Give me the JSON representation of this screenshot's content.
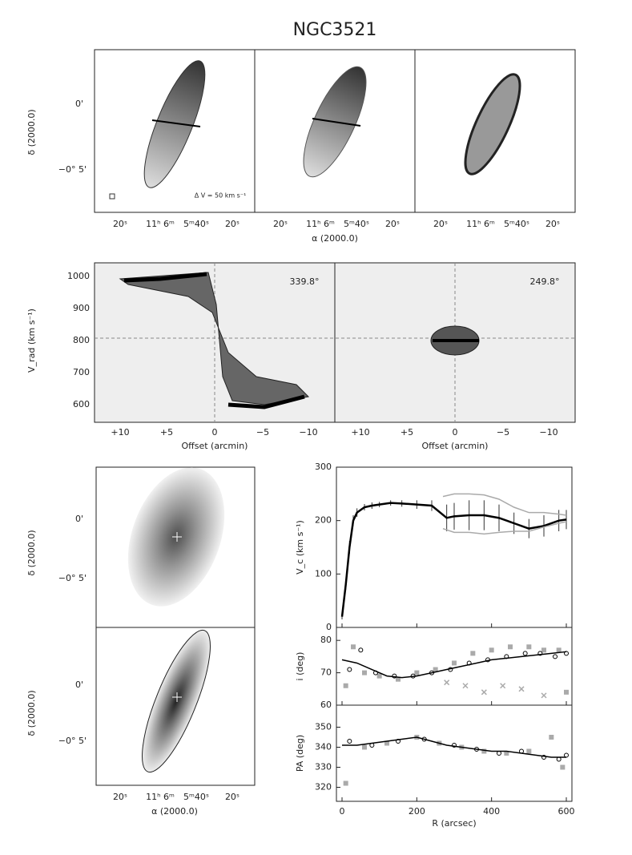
{
  "title": "NGC3521",
  "moment_maps": {
    "ylabel": "δ (2000.0)",
    "yticks": [
      "0'",
      "−0° 5'"
    ],
    "xticks": [
      "20ˢ",
      "11ʰ 6ᵐ",
      "5ᵐ40ˢ",
      "20ˢ"
    ],
    "xlabel": "α (2000.0)",
    "annotation": "Δ V = 50 km s⁻¹"
  },
  "pv": {
    "ylabel": "V_rad (km s⁻¹)",
    "yticks": [
      "1000",
      "900",
      "800",
      "700",
      "600"
    ],
    "xticks": [
      "+10",
      "+5",
      "0",
      "−5",
      "−10"
    ],
    "xlabel": "Offset (arcmin)",
    "angles": [
      "339.8°",
      "249.8°"
    ]
  },
  "optical": {
    "ylabel": "δ (2000.0)",
    "yticks": [
      "0'",
      "−0° 5'"
    ],
    "xticks": [
      "20ˢ",
      "11ʰ 6ᵐ",
      "5ᵐ40ˢ",
      "20ˢ"
    ],
    "xlabel": "α (2000.0)"
  },
  "chart_data": [
    {
      "type": "line",
      "ylabel": "V_c (km s⁻¹)",
      "xlim": [
        -15,
        615
      ],
      "xticks": [
        0,
        200,
        400,
        600
      ],
      "ylim": [
        0,
        300
      ],
      "yticks": [
        0,
        100,
        200,
        300
      ],
      "series": [
        {
          "color": "#000000",
          "marker": "line",
          "x": [
            0,
            10,
            20,
            30,
            40,
            60,
            80,
            100,
            130,
            160,
            200,
            240,
            280,
            300,
            340,
            380,
            420,
            460,
            500,
            540,
            580,
            600
          ],
          "values": [
            20,
            80,
            150,
            200,
            215,
            225,
            228,
            230,
            233,
            232,
            230,
            228,
            205,
            208,
            210,
            210,
            205,
            195,
            185,
            190,
            200,
            202
          ],
          "errors": [
            5,
            10,
            12,
            10,
            8,
            6,
            6,
            5,
            5,
            6,
            8,
            10,
            25,
            25,
            28,
            28,
            25,
            20,
            18,
            20,
            20,
            18
          ]
        },
        {
          "color": "#aaaaaa",
          "marker": "line",
          "x": [
            270,
            300,
            340,
            380,
            420,
            460,
            500,
            540,
            580,
            600
          ],
          "values": [
            245,
            250,
            250,
            248,
            240,
            225,
            215,
            215,
            212,
            210
          ]
        },
        {
          "color": "#aaaaaa",
          "marker": "line",
          "x": [
            270,
            300,
            340,
            380,
            420,
            460,
            500,
            540,
            580,
            600
          ],
          "values": [
            185,
            178,
            178,
            175,
            178,
            180,
            180,
            188,
            195,
            198
          ]
        }
      ]
    },
    {
      "type": "line",
      "ylabel": "i (deg)",
      "xlim": [
        -15,
        615
      ],
      "xticks": [
        0,
        200,
        400,
        600
      ],
      "ylim": [
        60,
        84
      ],
      "yticks": [
        60,
        70,
        80
      ],
      "series": [
        {
          "color": "#aaaaaa",
          "marker": "square",
          "x": [
            10,
            30,
            60,
            100,
            150,
            200,
            250,
            300,
            350,
            400,
            450,
            500,
            540,
            580,
            600
          ],
          "values": [
            66,
            78,
            70,
            69,
            68,
            70,
            71,
            73,
            76,
            77,
            78,
            78,
            77,
            77,
            64
          ]
        },
        {
          "color": "#aaaaaa",
          "marker": "cross",
          "x": [
            280,
            330,
            380,
            430,
            480,
            540
          ],
          "values": [
            67,
            66,
            64,
            66,
            65,
            63
          ]
        },
        {
          "color": "#000000",
          "marker": "circle",
          "x": [
            20,
            50,
            90,
            140,
            190,
            240,
            290,
            340,
            390,
            440,
            490,
            530,
            570,
            600
          ],
          "values": [
            71,
            77,
            70,
            69,
            69,
            70,
            71,
            73,
            74,
            75,
            76,
            76,
            75,
            76
          ]
        },
        {
          "color": "#000000",
          "marker": "line",
          "x": [
            0,
            40,
            80,
            120,
            160,
            200,
            240,
            280,
            320,
            360,
            400,
            440,
            480,
            520,
            560,
            600
          ],
          "values": [
            74,
            73,
            71,
            69,
            68.5,
            69,
            70,
            71,
            72,
            73,
            74,
            74.5,
            75,
            75.5,
            76,
            76.5
          ]
        }
      ]
    },
    {
      "type": "line",
      "ylabel": "PA (deg)",
      "xlabel": "R (arcsec)",
      "show_xtick_labels": true,
      "xlim": [
        -15,
        615
      ],
      "xticks": [
        0,
        200,
        400,
        600
      ],
      "ylim": [
        313,
        361
      ],
      "yticks": [
        320,
        330,
        340,
        350
      ],
      "series": [
        {
          "color": "#aaaaaa",
          "marker": "square",
          "x": [
            10,
            60,
            120,
            200,
            260,
            320,
            380,
            440,
            500,
            560,
            590
          ],
          "values": [
            322,
            340,
            342,
            345,
            342,
            340,
            338,
            337,
            338,
            345,
            330
          ]
        },
        {
          "color": "#000000",
          "marker": "circle",
          "x": [
            20,
            80,
            150,
            220,
            300,
            360,
            420,
            480,
            540,
            580,
            600
          ],
          "values": [
            343,
            341,
            343,
            344,
            341,
            339,
            337,
            338,
            335,
            334,
            336
          ]
        },
        {
          "color": "#000000",
          "marker": "line",
          "x": [
            0,
            40,
            80,
            120,
            160,
            200,
            240,
            280,
            320,
            360,
            400,
            440,
            480,
            520,
            560,
            600
          ],
          "values": [
            341,
            341,
            342,
            343,
            344,
            345,
            343,
            341,
            340,
            339,
            338,
            338,
            337,
            336,
            335,
            335
          ]
        }
      ]
    }
  ]
}
